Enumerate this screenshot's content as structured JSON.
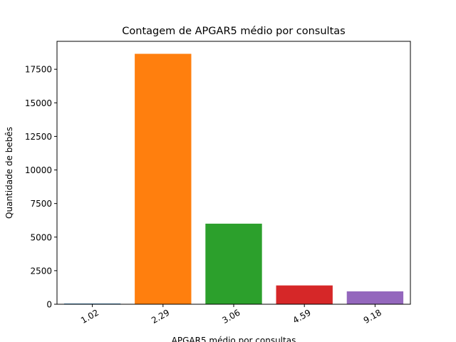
{
  "chart_data": {
    "type": "bar",
    "title": "Contagem de APGAR5 médio por consultas",
    "xlabel": "APGAR5 médio por consultas",
    "ylabel": "Quantidade de bebês",
    "categories": [
      "1.02",
      "2.29",
      "3.06",
      "4.59",
      "9.18"
    ],
    "values": [
      50,
      18650,
      6000,
      1400,
      960
    ],
    "colors": [
      "#1f77b4",
      "#ff7f0e",
      "#2ca02c",
      "#d62728",
      "#9467bd"
    ],
    "ylim": [
      0,
      19580
    ],
    "yticks": [
      0,
      2500,
      5000,
      7500,
      10000,
      12500,
      15000,
      17500
    ],
    "grid": false,
    "legend": "none"
  }
}
